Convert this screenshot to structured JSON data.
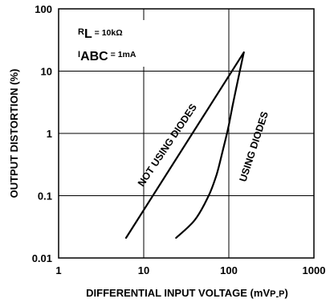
{
  "chart_data": {
    "type": "line",
    "title": "",
    "xlabel": "DIFFERENTIAL INPUT VOLTAGE (mVp-p)",
    "xlabel_parts": {
      "main": "DIFFERENTIAL INPUT VOLTAGE (mV",
      "p1": "P",
      "dash": "-",
      "p2": "P",
      "close": ")"
    },
    "ylabel": "OUTPUT DISTORTION (%)",
    "x_scale": "log",
    "y_scale": "log",
    "xlim": [
      1,
      1000
    ],
    "ylim": [
      0.01,
      100
    ],
    "x_ticks": [
      "1",
      "10",
      "100",
      "1000"
    ],
    "y_ticks": [
      "0.01",
      "0.1",
      "1",
      "10",
      "100"
    ],
    "grid": true,
    "annotations": {
      "rl": {
        "sym": "R",
        "sub": "L",
        "val": " = 10kΩ"
      },
      "iabc": {
        "sym": "I",
        "sub": "ABC",
        "val": " = 1mA"
      }
    },
    "series": [
      {
        "name": "NOT USING DIODES",
        "points": [
          [
            6.2,
            0.021
          ],
          [
            150,
            20
          ]
        ]
      },
      {
        "name": "USING DIODES",
        "points": [
          [
            24,
            0.021
          ],
          [
            40,
            0.041
          ],
          [
            58,
            0.1
          ],
          [
            72,
            0.22
          ],
          [
            84,
            0.5
          ],
          [
            98,
            1.2
          ],
          [
            112,
            3.0
          ],
          [
            130,
            8.0
          ],
          [
            150,
            20
          ]
        ]
      }
    ]
  }
}
